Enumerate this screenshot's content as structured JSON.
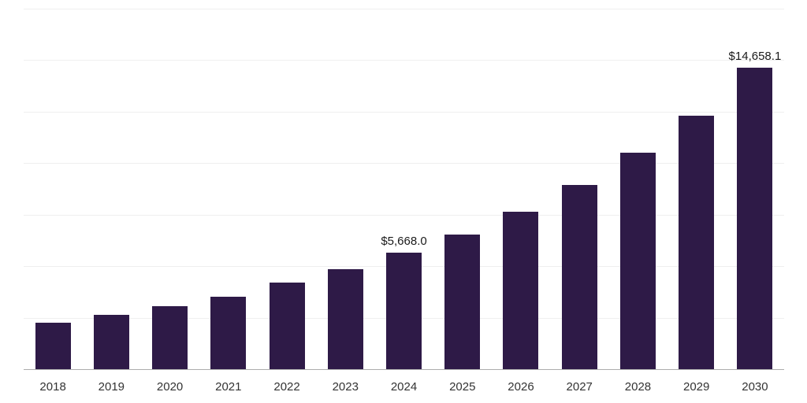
{
  "chart_data": {
    "type": "bar",
    "title": "",
    "xlabel": "",
    "ylabel": "",
    "categories": [
      "2018",
      "2019",
      "2020",
      "2021",
      "2022",
      "2023",
      "2024",
      "2025",
      "2026",
      "2027",
      "2028",
      "2029",
      "2030"
    ],
    "values": [
      2270,
      2640,
      3050,
      3540,
      4200,
      4870,
      5668.0,
      6550,
      7660,
      8970,
      10530,
      12350,
      14658.1
    ],
    "data_labels": {
      "2024": "$5,668.0",
      "2030": "$14,658.1"
    },
    "ylim": [
      0,
      17500
    ],
    "grid_interval": 2500,
    "grid": "horizontal",
    "legend": "none",
    "bar_color": "#2E1A47",
    "background": "#FFFFFF",
    "gridline_color": "#EFEFEF",
    "axis_line_color": "#ADADAD",
    "label_color": "#1A1A1A",
    "tick_label_color": "#333333"
  }
}
